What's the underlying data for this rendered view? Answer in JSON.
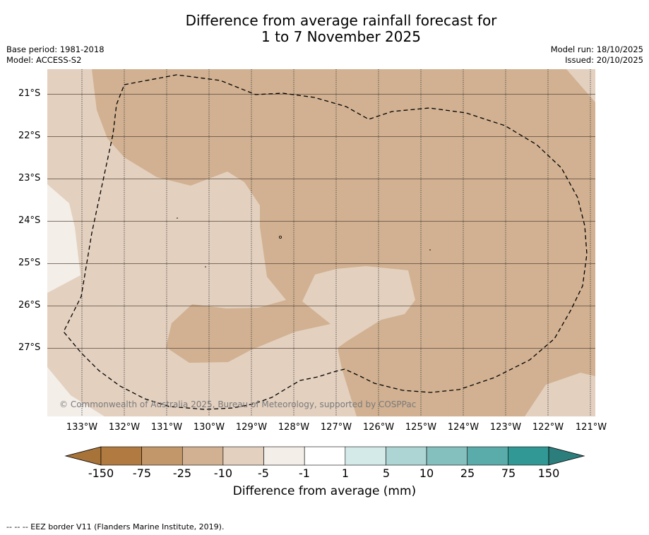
{
  "header": {
    "title_line1": "Difference from average rainfall forecast for",
    "title_line2": "1 to 7 November 2025",
    "base_period": "Base period: 1981-2018",
    "model": "Model: ACCESS-S2",
    "model_run": "Model run: 18/10/2025",
    "issued": "Issued: 20/10/2025"
  },
  "map": {
    "latitude_labels": [
      "21°S",
      "22°S",
      "23°S",
      "24°S",
      "25°S",
      "26°S",
      "27°S"
    ],
    "longitude_labels": [
      "133°W",
      "132°W",
      "131°W",
      "130°W",
      "129°W",
      "128°W",
      "127°W",
      "126°W",
      "125°W",
      "124°W",
      "123°W",
      "122°W",
      "121°W"
    ],
    "copyright": "© Commonwealth of Australia 2025, Bureau of Meteorology, supported by COSPPac",
    "region_colors": {
      "minus_10_to_minus_5": "#e3d0bf",
      "minus_25_to_minus_10": "#d1b191",
      "minus_5_to_minus_1": "#f3eee8"
    }
  },
  "colorbar": {
    "tick_labels": [
      "-150",
      "-75",
      "-25",
      "-10",
      "-5",
      "-1",
      "1",
      "5",
      "10",
      "25",
      "75",
      "150"
    ],
    "colors": [
      "#a77339",
      "#b07a40",
      "#c2976a",
      "#d1b191",
      "#e3d0bf",
      "#f3eee8",
      "#ffffff",
      "#d4eae9",
      "#acd5d4",
      "#83c0be",
      "#5aacaa",
      "#319895",
      "#2b7e7c"
    ],
    "title": "Difference from average (mm)"
  },
  "footnote": "--  --  -- EEZ border V11 (Flanders Marine Institute, 2019)."
}
